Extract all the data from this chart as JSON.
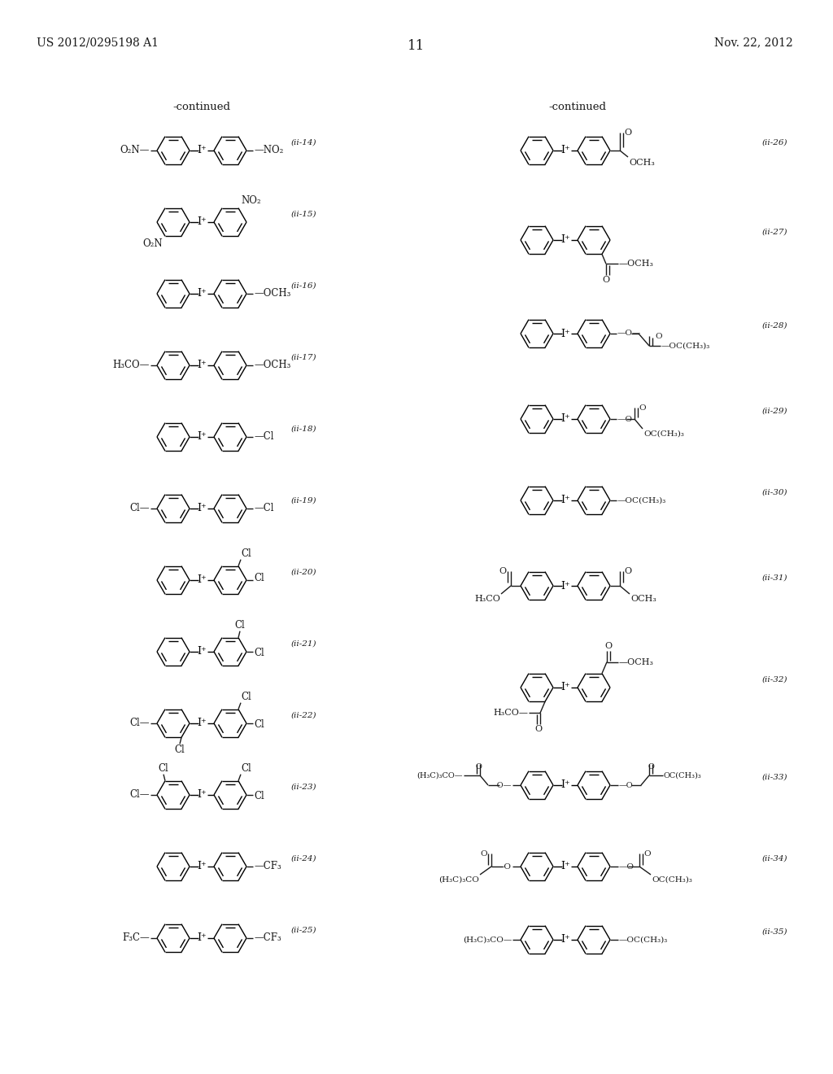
{
  "page_number": "11",
  "patent_number": "US 2012/0295198 A1",
  "patent_date": "Nov. 22, 2012",
  "background_color": "#ffffff",
  "text_color": "#1a1a1a",
  "continued_label": "-continued"
}
